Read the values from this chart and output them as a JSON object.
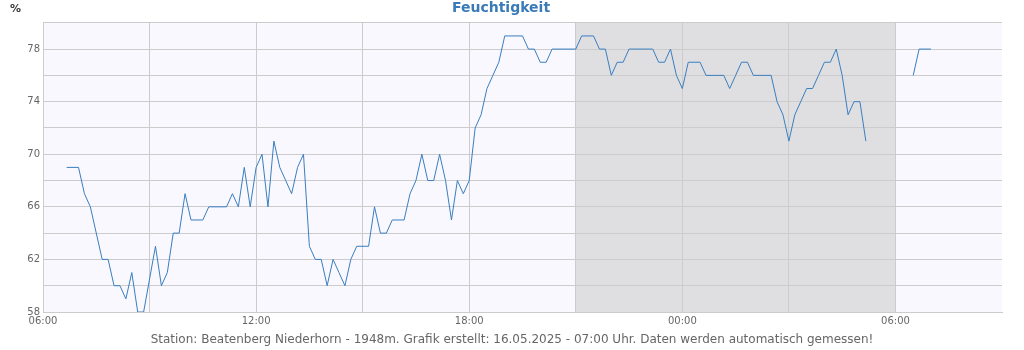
{
  "chart_data": {
    "type": "line",
    "title": "Feuchtigkeit",
    "ylabel": "%",
    "annotations": [
      "Station: Beatenberg Niederhorn - 1948m. Grafik erstellt: 16.05.2025 - 07:00 Uhr. Daten werden automatisch gemessen!"
    ],
    "xlim": [
      "2025-05-15T06:00",
      "2025-05-16T09:00"
    ],
    "ylim": [
      58,
      80
    ],
    "xticks": [
      {
        "value": "2025-05-15T06:00",
        "label": "06:00"
      },
      {
        "value": "2025-05-15T09:00",
        "label": null
      },
      {
        "value": "2025-05-15T12:00",
        "label": "12:00"
      },
      {
        "value": "2025-05-15T15:00",
        "label": null
      },
      {
        "value": "2025-05-15T18:00",
        "label": "18:00"
      },
      {
        "value": "2025-05-15T21:00",
        "label": null
      },
      {
        "value": "2025-05-16T00:00",
        "label": "00:00"
      },
      {
        "value": "2025-05-16T03:00",
        "label": null
      },
      {
        "value": "2025-05-16T06:00",
        "label": "06:00"
      }
    ],
    "yticks": [
      58,
      {
        "value": 60,
        "label": null
      },
      62,
      {
        "value": 64,
        "label": null
      },
      66,
      {
        "value": 68,
        "label": null
      },
      70,
      {
        "value": 72,
        "label": null
      },
      74,
      {
        "value": 76,
        "label": null
      },
      78,
      {
        "value": 80,
        "label": null
      }
    ],
    "grid": true,
    "marker": "none",
    "line_style": "solid",
    "bands": [
      {
        "axis": "x",
        "from": "2025-05-15T21:00",
        "to": "2025-05-16T06:00",
        "label": null,
        "color": "#dfdfe2"
      }
    ],
    "series": [
      {
        "color": "#3a7ebf",
        "x": [
          "2025-05-15T06:40",
          "2025-05-15T07:00",
          "2025-05-15T07:10",
          "2025-05-15T07:20",
          "2025-05-15T07:40",
          "2025-05-15T07:50",
          "2025-05-15T08:00",
          "2025-05-15T08:10",
          "2025-05-15T08:20",
          "2025-05-15T08:30",
          "2025-05-15T08:40",
          "2025-05-15T08:50",
          "2025-05-15T09:10",
          "2025-05-15T09:20",
          "2025-05-15T09:30",
          "2025-05-15T09:40",
          "2025-05-15T09:50",
          "2025-05-15T10:00",
          "2025-05-15T10:10",
          "2025-05-15T10:30",
          "2025-05-15T10:40",
          "2025-05-15T11:10",
          "2025-05-15T11:20",
          "2025-05-15T11:30",
          "2025-05-15T11:40",
          "2025-05-15T11:50",
          "2025-05-15T12:00",
          "2025-05-15T12:10",
          "2025-05-15T12:20",
          "2025-05-15T12:30",
          "2025-05-15T12:40",
          "2025-05-15T12:50",
          "2025-05-15T13:00",
          "2025-05-15T13:10",
          "2025-05-15T13:20",
          "2025-05-15T13:30",
          "2025-05-15T13:40",
          "2025-05-15T13:50",
          "2025-05-15T14:00",
          "2025-05-15T14:10",
          "2025-05-15T14:20",
          "2025-05-15T14:30",
          "2025-05-15T14:40",
          "2025-05-15T14:50",
          "2025-05-15T15:10",
          "2025-05-15T15:20",
          "2025-05-15T15:30",
          "2025-05-15T15:40",
          "2025-05-15T15:50",
          "2025-05-15T16:10",
          "2025-05-15T16:20",
          "2025-05-15T16:30",
          "2025-05-15T16:40",
          "2025-05-15T16:50",
          "2025-05-15T17:00",
          "2025-05-15T17:10",
          "2025-05-15T17:20",
          "2025-05-15T17:30",
          "2025-05-15T17:40",
          "2025-05-15T17:50",
          "2025-05-15T18:00",
          "2025-05-15T18:10",
          "2025-05-15T18:20",
          "2025-05-15T18:30",
          "2025-05-15T18:40",
          "2025-05-15T18:50",
          "2025-05-15T19:00",
          "2025-05-15T19:30",
          "2025-05-15T19:40",
          "2025-05-15T19:50",
          "2025-05-15T20:00",
          "2025-05-15T20:10",
          "2025-05-15T20:20",
          "2025-05-15T21:00",
          "2025-05-15T21:10",
          "2025-05-15T21:30",
          "2025-05-15T21:40",
          "2025-05-15T21:50",
          "2025-05-15T22:00",
          "2025-05-15T22:10",
          "2025-05-15T22:20",
          "2025-05-15T22:30",
          "2025-05-15T23:10",
          "2025-05-15T23:20",
          "2025-05-15T23:30",
          "2025-05-15T23:40",
          "2025-05-15T23:50",
          "2025-05-16T00:00",
          "2025-05-16T00:10",
          "2025-05-16T00:30",
          "2025-05-16T00:40",
          "2025-05-16T01:10",
          "2025-05-16T01:20",
          "2025-05-16T01:30",
          "2025-05-16T01:40",
          "2025-05-16T01:50",
          "2025-05-16T02:00",
          "2025-05-16T02:30",
          "2025-05-16T02:40",
          "2025-05-16T02:50",
          "2025-05-16T03:00",
          "2025-05-16T03:10",
          "2025-05-16T03:20",
          "2025-05-16T03:30",
          "2025-05-16T03:40",
          "2025-05-16T03:50",
          "2025-05-16T04:00",
          "2025-05-16T04:10",
          "2025-05-16T04:20",
          "2025-05-16T04:30",
          "2025-05-16T04:40",
          "2025-05-16T04:50",
          "2025-05-16T05:00",
          "2025-05-16T05:10",
          "2025-05-16T05:50",
          "2025-05-16T06:30",
          "2025-05-16T06:40",
          "2025-05-16T07:00"
        ],
        "values": [
          69,
          69,
          67,
          66,
          62,
          62,
          60,
          60,
          59,
          61,
          58,
          58,
          63,
          60,
          61,
          64,
          64,
          67,
          65,
          65,
          66,
          66,
          67,
          66,
          69,
          66,
          69,
          70,
          66,
          71,
          69,
          68,
          67,
          69,
          70,
          63,
          62,
          62,
          60,
          62,
          61,
          60,
          62,
          63,
          63,
          66,
          64,
          64,
          65,
          65,
          67,
          68,
          70,
          68,
          68,
          70,
          68,
          65,
          68,
          67,
          68,
          72,
          73,
          75,
          76,
          77,
          79,
          79,
          78,
          78,
          77,
          77,
          78,
          78,
          79,
          79,
          78,
          78,
          76,
          77,
          77,
          78,
          78,
          77,
          77,
          78,
          76,
          75,
          77,
          77,
          76,
          76,
          75,
          76,
          77,
          77,
          76,
          76,
          74,
          73,
          71,
          73,
          74,
          75,
          75,
          76,
          77,
          77,
          78,
          76,
          73,
          74,
          74,
          71,
          null,
          76,
          78,
          78
        ]
      }
    ]
  }
}
